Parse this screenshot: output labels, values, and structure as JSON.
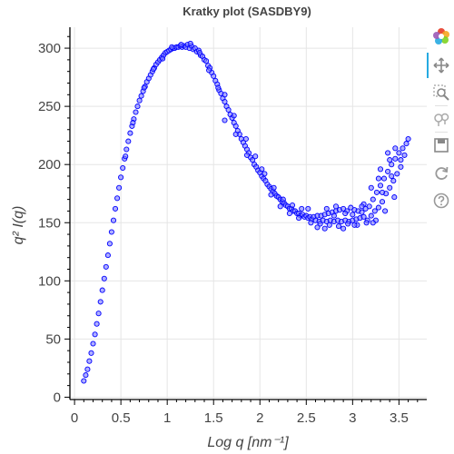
{
  "chart_data": {
    "type": "scatter",
    "title": "Kratky plot (SASDBY9)",
    "xlabel": "Log q [nm⁻¹]",
    "ylabel": "q² I(q)",
    "xlim": [
      -0.05,
      3.8
    ],
    "ylim": [
      -2,
      318
    ],
    "xticks": [
      0,
      0.5,
      1,
      1.5,
      2,
      2.5,
      3,
      3.5
    ],
    "xtick_labels": [
      "0",
      "0.5",
      "1",
      "1.5",
      "2",
      "2.5",
      "3",
      "3.5"
    ],
    "yticks": [
      0,
      50,
      100,
      150,
      200,
      250,
      300
    ],
    "ytick_labels": [
      "0",
      "50",
      "100",
      "150",
      "200",
      "250",
      "300"
    ],
    "grid": true,
    "marker_color": "#0000ff",
    "marker_fill": "#7a7aff",
    "series": [
      {
        "points": [
          [
            0.1,
            14
          ],
          [
            0.12,
            19
          ],
          [
            0.14,
            24
          ],
          [
            0.16,
            31
          ],
          [
            0.18,
            38
          ],
          [
            0.2,
            46
          ],
          [
            0.22,
            54
          ],
          [
            0.24,
            63
          ],
          [
            0.26,
            72
          ],
          [
            0.28,
            82
          ],
          [
            0.3,
            92
          ],
          [
            0.32,
            102
          ],
          [
            0.34,
            112
          ],
          [
            0.36,
            122
          ],
          [
            0.38,
            132
          ],
          [
            0.4,
            142
          ],
          [
            0.42,
            152
          ],
          [
            0.44,
            162
          ],
          [
            0.46,
            171
          ],
          [
            0.48,
            180
          ],
          [
            0.5,
            189
          ],
          [
            0.52,
            197
          ],
          [
            0.54,
            205
          ],
          [
            0.56,
            213
          ],
          [
            0.58,
            220
          ],
          [
            0.6,
            227
          ],
          [
            0.62,
            233
          ],
          [
            0.64,
            239
          ],
          [
            0.66,
            245
          ],
          [
            0.68,
            250
          ],
          [
            0.7,
            255
          ],
          [
            0.72,
            259
          ],
          [
            0.74,
            263
          ],
          [
            0.76,
            267
          ],
          [
            0.78,
            271
          ],
          [
            0.8,
            274
          ],
          [
            0.82,
            277
          ],
          [
            0.84,
            280
          ],
          [
            0.86,
            283
          ],
          [
            0.88,
            286
          ],
          [
            0.9,
            288
          ],
          [
            0.92,
            290
          ],
          [
            0.94,
            292
          ],
          [
            0.96,
            294
          ],
          [
            0.98,
            296
          ],
          [
            1.0,
            297
          ],
          [
            1.02,
            298
          ],
          [
            1.04,
            299
          ],
          [
            1.06,
            300
          ],
          [
            1.08,
            300
          ],
          [
            1.1,
            301
          ],
          [
            1.12,
            301
          ],
          [
            1.14,
            302
          ],
          [
            1.16,
            301
          ],
          [
            1.18,
            302
          ],
          [
            1.2,
            301
          ],
          [
            1.22,
            303
          ],
          [
            1.24,
            300
          ],
          [
            1.26,
            302
          ],
          [
            1.28,
            299
          ],
          [
            1.3,
            300
          ],
          [
            1.32,
            297
          ],
          [
            1.34,
            298
          ],
          [
            1.36,
            294
          ],
          [
            1.38,
            293
          ],
          [
            1.4,
            290
          ],
          [
            1.42,
            289
          ],
          [
            1.44,
            285
          ],
          [
            1.46,
            283
          ],
          [
            1.48,
            279
          ],
          [
            1.5,
            276
          ],
          [
            1.52,
            272
          ],
          [
            1.54,
            269
          ],
          [
            1.56,
            264
          ],
          [
            1.58,
            261
          ],
          [
            1.6,
            257
          ],
          [
            1.62,
            254
          ],
          [
            1.64,
            250
          ],
          [
            1.66,
            247
          ],
          [
            1.68,
            243
          ],
          [
            1.7,
            240
          ],
          [
            1.72,
            236
          ],
          [
            1.74,
            233
          ],
          [
            1.76,
            229
          ],
          [
            1.78,
            226
          ],
          [
            1.8,
            222
          ],
          [
            1.82,
            219
          ],
          [
            1.84,
            216
          ],
          [
            1.86,
            213
          ],
          [
            1.88,
            210
          ],
          [
            1.9,
            206
          ],
          [
            1.92,
            204
          ],
          [
            1.94,
            200
          ],
          [
            1.96,
            198
          ],
          [
            1.98,
            195
          ],
          [
            2.0,
            193
          ],
          [
            2.02,
            190
          ],
          [
            2.04,
            188
          ],
          [
            2.06,
            186
          ],
          [
            2.08,
            183
          ],
          [
            2.1,
            181
          ],
          [
            2.12,
            179
          ],
          [
            2.14,
            177
          ],
          [
            2.16,
            175
          ],
          [
            2.18,
            173
          ],
          [
            2.2,
            172
          ],
          [
            2.22,
            170
          ],
          [
            2.24,
            168
          ],
          [
            2.26,
            167
          ],
          [
            2.28,
            165
          ],
          [
            2.3,
            164
          ],
          [
            2.32,
            162
          ],
          [
            2.34,
            162
          ],
          [
            2.36,
            160
          ],
          [
            2.38,
            160
          ],
          [
            2.4,
            158
          ],
          [
            2.42,
            158
          ],
          [
            2.44,
            156
          ],
          [
            2.46,
            157
          ],
          [
            2.48,
            155
          ],
          [
            2.5,
            156
          ],
          [
            2.52,
            154
          ],
          [
            2.54,
            155
          ],
          [
            2.56,
            153
          ],
          [
            2.58,
            155
          ],
          [
            2.6,
            152
          ],
          [
            2.62,
            156
          ],
          [
            2.64,
            151
          ],
          [
            2.66,
            156
          ],
          [
            2.68,
            152
          ],
          [
            2.7,
            157
          ],
          [
            2.72,
            151
          ],
          [
            2.74,
            158
          ],
          [
            2.76,
            152
          ],
          [
            2.78,
            159
          ],
          [
            2.8,
            151
          ],
          [
            2.82,
            160
          ],
          [
            2.84,
            152
          ],
          [
            2.86,
            161
          ],
          [
            2.88,
            151
          ],
          [
            2.9,
            162
          ],
          [
            2.92,
            152
          ],
          [
            2.94,
            160
          ],
          [
            2.96,
            151
          ],
          [
            2.98,
            163
          ],
          [
            3.0,
            152
          ],
          [
            3.02,
            161
          ],
          [
            3.04,
            153
          ],
          [
            3.06,
            160
          ],
          [
            3.08,
            154
          ],
          [
            3.1,
            159
          ],
          [
            3.12,
            155
          ],
          [
            3.14,
            162
          ],
          [
            3.16,
            152
          ],
          [
            3.18,
            164
          ],
          [
            3.2,
            156
          ],
          [
            3.22,
            170
          ],
          [
            3.24,
            160
          ],
          [
            3.26,
            176
          ],
          [
            3.28,
            163
          ],
          [
            3.3,
            182
          ],
          [
            3.32,
            168
          ],
          [
            3.34,
            188
          ],
          [
            3.36,
            175
          ],
          [
            3.38,
            194
          ],
          [
            3.4,
            180
          ],
          [
            3.42,
            200
          ],
          [
            3.44,
            186
          ],
          [
            3.46,
            205
          ],
          [
            3.48,
            192
          ],
          [
            3.5,
            210
          ],
          [
            3.52,
            198
          ],
          [
            3.54,
            214
          ],
          [
            3.56,
            208
          ],
          [
            3.58,
            218
          ],
          [
            3.6,
            222
          ],
          [
            0.55,
            207
          ],
          [
            0.63,
            236
          ],
          [
            0.75,
            266
          ],
          [
            0.85,
            282
          ],
          [
            0.95,
            291
          ],
          [
            1.05,
            301
          ],
          [
            1.15,
            303
          ],
          [
            1.25,
            304
          ],
          [
            1.35,
            296
          ],
          [
            1.45,
            281
          ],
          [
            1.55,
            266
          ],
          [
            1.62,
            260
          ],
          [
            1.72,
            242
          ],
          [
            1.85,
            222
          ],
          [
            1.95,
            207
          ],
          [
            2.05,
            192
          ],
          [
            2.15,
            180
          ],
          [
            2.25,
            170
          ],
          [
            2.35,
            165
          ],
          [
            2.45,
            162
          ],
          [
            2.55,
            150
          ],
          [
            2.65,
            149
          ],
          [
            2.75,
            148
          ],
          [
            2.85,
            147
          ],
          [
            2.95,
            149
          ],
          [
            3.05,
            148
          ],
          [
            3.15,
            150
          ],
          [
            3.25,
            152
          ],
          [
            3.35,
            160
          ],
          [
            3.45,
            172
          ],
          [
            1.62,
            238
          ],
          [
            1.74,
            226
          ],
          [
            1.86,
            208
          ],
          [
            2.02,
            196
          ],
          [
            2.12,
            174
          ],
          [
            2.22,
            164
          ],
          [
            2.32,
            158
          ],
          [
            2.42,
            154
          ],
          [
            2.52,
            162
          ],
          [
            2.62,
            146
          ],
          [
            2.72,
            162
          ],
          [
            2.82,
            164
          ],
          [
            2.92,
            158
          ],
          [
            3.02,
            148
          ],
          [
            3.12,
            166
          ],
          [
            3.22,
            150
          ],
          [
            3.32,
            176
          ],
          [
            3.42,
            190
          ],
          [
            3.52,
            204
          ],
          [
            3.38,
            210
          ],
          [
            3.3,
            196
          ],
          [
            3.46,
            214
          ],
          [
            3.4,
            204
          ],
          [
            3.28,
            188
          ],
          [
            3.2,
            180
          ],
          [
            3.1,
            164
          ],
          [
            3.0,
            157
          ],
          [
            2.9,
            145
          ],
          [
            2.8,
            156
          ],
          [
            2.7,
            145
          ]
        ]
      }
    ]
  }
}
